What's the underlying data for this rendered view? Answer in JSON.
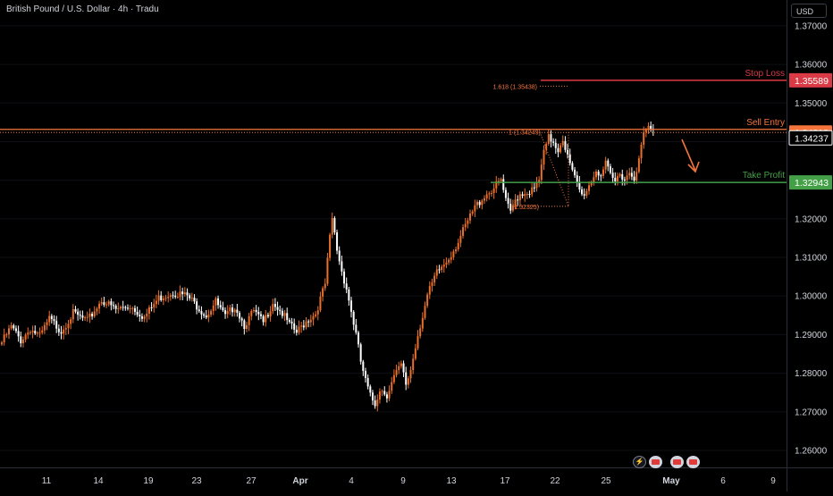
{
  "title": "British Pound / U.S. Dollar · 4h · Tradu",
  "currency": "USD",
  "colors": {
    "background": "#000000",
    "up": "#e8702a",
    "down": "#ffffff",
    "entry": "#f4743b",
    "stop": "#d93a46",
    "target": "#43a047",
    "axis_text": "#d1d4dc"
  },
  "levels": {
    "stop_loss": {
      "label": "Stop Loss",
      "price": "1.35589"
    },
    "sell_entry": {
      "label": "Sell Entry",
      "price": "1.34318"
    },
    "current": {
      "price": "1.34237"
    },
    "take_profit": {
      "label": "Take Profit",
      "price": "1.32943"
    }
  },
  "fib_labels": {
    "ext": "1.618 (1.35438)",
    "top": "1 (1.34249)",
    "bottom": "(1.32325)"
  },
  "toolbar_icons": [
    "lightning-icon",
    "flag-icon",
    "flag-icon",
    "flag-icon"
  ],
  "chart_data": {
    "type": "candlestick",
    "symbol": "GBPUSD",
    "interval": "4h",
    "ylim": [
      1.256,
      1.376
    ],
    "y_ticks": [
      "1.37000",
      "1.36000",
      "1.35000",
      "1.34000",
      "1.33000",
      "1.32000",
      "1.31000",
      "1.30000",
      "1.29000",
      "1.28000",
      "1.27000",
      "1.26000"
    ],
    "x_ticks": [
      "11",
      "14",
      "19",
      "23",
      "27",
      "Apr",
      "4",
      "9",
      "13",
      "17",
      "22",
      "25",
      "May",
      "6",
      "9"
    ],
    "horizontal_lines": [
      {
        "name": "Stop Loss",
        "price": 1.35589
      },
      {
        "name": "Sell Entry",
        "price": 1.34318
      },
      {
        "name": "Take Profit",
        "price": 1.32943
      }
    ],
    "fibonacci": {
      "level_1": 1.34249,
      "level_1618": 1.35438,
      "level_0": 1.32325
    },
    "projection": "down",
    "path": [
      [
        0,
        1.288
      ],
      [
        4,
        1.292
      ],
      [
        8,
        1.2885
      ],
      [
        12,
        1.2915
      ],
      [
        16,
        1.2895
      ],
      [
        20,
        1.294
      ],
      [
        25,
        1.291
      ],
      [
        30,
        1.2955
      ],
      [
        36,
        1.2935
      ],
      [
        42,
        1.299
      ],
      [
        48,
        1.2965
      ],
      [
        54,
        1.2975
      ],
      [
        60,
        1.2945
      ],
      [
        66,
        1.2995
      ],
      [
        72,
        1.301
      ],
      [
        78,
        1.3
      ],
      [
        82,
        1.2975
      ],
      [
        86,
        1.295
      ],
      [
        90,
        1.2985
      ],
      [
        94,
        1.2945
      ],
      [
        98,
        1.2975
      ],
      [
        102,
        1.2925
      ],
      [
        106,
        1.296
      ],
      [
        110,
        1.293
      ],
      [
        114,
        1.2985
      ],
      [
        118,
        1.2955
      ],
      [
        121,
        1.2925
      ],
      [
        124,
        1.2905
      ],
      [
        128,
        1.2935
      ],
      [
        132,
        1.2955
      ],
      [
        136,
        1.303
      ],
      [
        138,
        1.315
      ],
      [
        139,
        1.32
      ],
      [
        141,
        1.312
      ],
      [
        143,
        1.3065
      ],
      [
        145,
        1.302
      ],
      [
        147,
        1.296
      ],
      [
        149,
        1.29
      ],
      [
        151,
        1.283
      ],
      [
        153,
        1.278
      ],
      [
        155,
        1.274
      ],
      [
        157,
        1.272
      ],
      [
        159,
        1.276
      ],
      [
        162,
        1.2745
      ],
      [
        165,
        1.279
      ],
      [
        168,
        1.282
      ],
      [
        170,
        1.277
      ],
      [
        172,
        1.281
      ],
      [
        175,
        1.29
      ],
      [
        179,
        1.3
      ],
      [
        183,
        1.306
      ],
      [
        187,
        1.309
      ],
      [
        191,
        1.313
      ],
      [
        195,
        1.318
      ],
      [
        199,
        1.323
      ],
      [
        203,
        1.326
      ],
      [
        207,
        1.328
      ],
      [
        210,
        1.33
      ],
      [
        212,
        1.3245
      ],
      [
        214,
        1.3215
      ],
      [
        216,
        1.325
      ],
      [
        218,
        1.3265
      ],
      [
        221,
        1.327
      ],
      [
        224,
        1.3275
      ],
      [
        226,
        1.33
      ],
      [
        228,
        1.337
      ],
      [
        230,
        1.341
      ],
      [
        232,
        1.34
      ],
      [
        234,
        1.338
      ],
      [
        236,
        1.341
      ],
      [
        238,
        1.336
      ],
      [
        240,
        1.332
      ],
      [
        242,
        1.329
      ],
      [
        244,
        1.326
      ],
      [
        246,
        1.3275
      ],
      [
        248,
        1.33
      ],
      [
        250,
        1.3325
      ],
      [
        252,
        1.3315
      ],
      [
        254,
        1.334
      ],
      [
        256,
        1.331
      ],
      [
        258,
        1.3295
      ],
      [
        260,
        1.332
      ],
      [
        262,
        1.3305
      ],
      [
        264,
        1.332
      ],
      [
        266,
        1.331
      ],
      [
        268,
        1.335
      ],
      [
        270,
        1.342
      ],
      [
        272,
        1.3435
      ],
      [
        274,
        1.3425
      ]
    ]
  }
}
